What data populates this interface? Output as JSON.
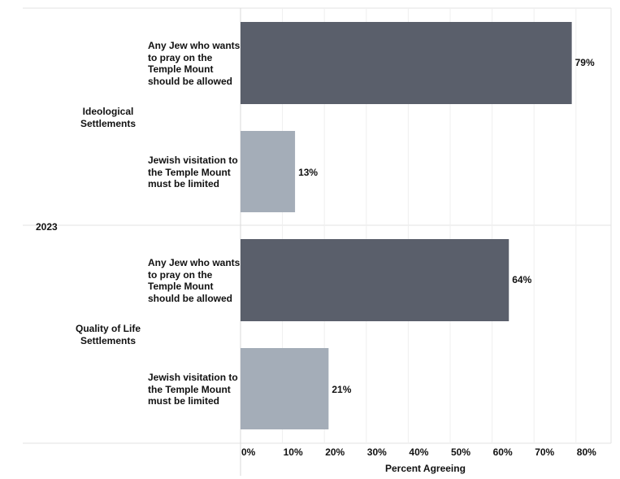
{
  "chart_data": {
    "type": "bar",
    "orientation": "horizontal",
    "xlabel": "Percent Agreeing",
    "xlim": [
      0,
      85
    ],
    "xticks": [
      "0%",
      "10%",
      "20%",
      "30%",
      "40%",
      "50%",
      "60%",
      "70%",
      "80%"
    ],
    "grid": true,
    "year": "2023",
    "groups": [
      {
        "name": "Ideological Settlements",
        "name_lines": [
          "Ideological",
          "Settlements"
        ],
        "bars": [
          {
            "label_lines": [
              "Any Jew who wants",
              "to pray on the",
              "Temple Mount",
              "should be allowed"
            ],
            "value": 79,
            "value_label": "79%",
            "color": "#5a5f6b"
          },
          {
            "label_lines": [
              "Jewish visitation to",
              "the Temple Mount",
              "must be limited"
            ],
            "value": 13,
            "value_label": "13%",
            "color": "#a4adb8"
          }
        ]
      },
      {
        "name": "Quality of Life Settlements",
        "name_lines": [
          "Quality of Life",
          "Settlements"
        ],
        "bars": [
          {
            "label_lines": [
              "Any Jew who wants",
              "to pray on the",
              "Temple Mount",
              "should be allowed"
            ],
            "value": 64,
            "value_label": "64%",
            "color": "#5a5f6b"
          },
          {
            "label_lines": [
              "Jewish visitation to",
              "the Temple Mount",
              "must be limited"
            ],
            "value": 21,
            "value_label": "21%",
            "color": "#a4adb8"
          }
        ]
      }
    ]
  }
}
